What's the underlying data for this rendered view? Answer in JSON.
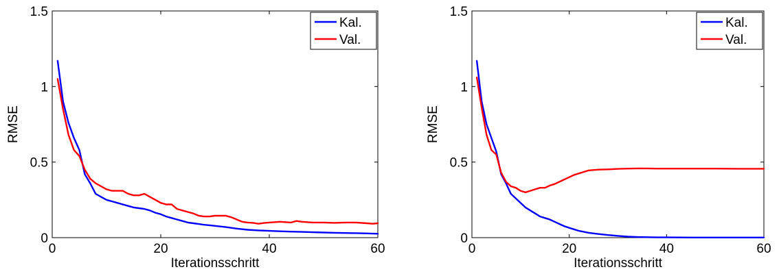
{
  "colors": {
    "kal": "#0000ff",
    "val": "#ff0000",
    "axis": "#000000"
  },
  "chart_data": [
    {
      "type": "line",
      "xlabel": "Iterationsschritt",
      "ylabel": "RMSE",
      "xlim": [
        0,
        60
      ],
      "ylim": [
        0,
        1.5
      ],
      "xticks": [
        0,
        20,
        40,
        60
      ],
      "yticks": [
        0,
        0.5,
        1,
        1.5
      ],
      "ytick_labels": [
        "0",
        "0.5",
        "1",
        "1.5"
      ],
      "grid": false,
      "legend_position": "top-right",
      "series": [
        {
          "name": "Kal.",
          "color": "#0000ff",
          "x": [
            1,
            2,
            3,
            4,
            5,
            6,
            7,
            8,
            9,
            10,
            11,
            12,
            13,
            14,
            15,
            16,
            17,
            18,
            19,
            20,
            21,
            22,
            23,
            24,
            25,
            26,
            27,
            28,
            29,
            30,
            32,
            34,
            36,
            38,
            40,
            42,
            44,
            46,
            48,
            50,
            52,
            54,
            56,
            58,
            60
          ],
          "y": [
            1.17,
            0.9,
            0.76,
            0.66,
            0.58,
            0.42,
            0.36,
            0.29,
            0.27,
            0.25,
            0.24,
            0.23,
            0.22,
            0.21,
            0.2,
            0.195,
            0.19,
            0.18,
            0.165,
            0.155,
            0.14,
            0.13,
            0.12,
            0.11,
            0.1,
            0.095,
            0.09,
            0.085,
            0.082,
            0.078,
            0.07,
            0.06,
            0.052,
            0.048,
            0.045,
            0.042,
            0.04,
            0.038,
            0.036,
            0.034,
            0.032,
            0.031,
            0.03,
            0.028,
            0.026
          ]
        },
        {
          "name": "Val.",
          "color": "#ff0000",
          "x": [
            1,
            2,
            3,
            4,
            5,
            6,
            7,
            8,
            9,
            10,
            11,
            12,
            13,
            14,
            15,
            16,
            17,
            18,
            19,
            20,
            21,
            22,
            23,
            24,
            25,
            26,
            27,
            28,
            29,
            30,
            31,
            32,
            33,
            34,
            35,
            36,
            37,
            38,
            39,
            40,
            42,
            44,
            45,
            46,
            48,
            50,
            52,
            54,
            56,
            58,
            59,
            60
          ],
          "y": [
            1.05,
            0.85,
            0.68,
            0.58,
            0.54,
            0.45,
            0.39,
            0.36,
            0.34,
            0.32,
            0.31,
            0.31,
            0.31,
            0.29,
            0.28,
            0.28,
            0.29,
            0.27,
            0.25,
            0.23,
            0.22,
            0.22,
            0.19,
            0.18,
            0.17,
            0.16,
            0.145,
            0.14,
            0.14,
            0.145,
            0.145,
            0.145,
            0.135,
            0.12,
            0.105,
            0.1,
            0.098,
            0.092,
            0.097,
            0.1,
            0.105,
            0.1,
            0.11,
            0.105,
            0.1,
            0.1,
            0.098,
            0.1,
            0.1,
            0.095,
            0.092,
            0.095
          ]
        }
      ]
    },
    {
      "type": "line",
      "xlabel": "Iterationsschritt",
      "ylabel": "RMSE",
      "xlim": [
        0,
        60
      ],
      "ylim": [
        0,
        1.5
      ],
      "xticks": [
        0,
        20,
        40,
        60
      ],
      "yticks": [
        0,
        0.5,
        1,
        1.5
      ],
      "ytick_labels": [
        "0",
        "0.5",
        "1",
        "1.5"
      ],
      "grid": false,
      "legend_position": "top-right",
      "series": [
        {
          "name": "Kal.",
          "color": "#0000ff",
          "x": [
            1,
            2,
            3,
            4,
            5,
            6,
            7,
            8,
            9,
            10,
            11,
            12,
            13,
            14,
            15,
            16,
            17,
            18,
            19,
            20,
            22,
            24,
            26,
            28,
            30,
            32,
            34,
            36,
            38,
            40,
            45,
            50,
            55,
            60
          ],
          "y": [
            1.17,
            0.9,
            0.75,
            0.66,
            0.57,
            0.42,
            0.36,
            0.29,
            0.26,
            0.23,
            0.2,
            0.18,
            0.16,
            0.14,
            0.13,
            0.12,
            0.105,
            0.09,
            0.075,
            0.065,
            0.045,
            0.032,
            0.024,
            0.017,
            0.012,
            0.007,
            0.004,
            0.003,
            0.002,
            0.002,
            0.001,
            0.001,
            0.001,
            0.001
          ]
        },
        {
          "name": "Val.",
          "color": "#ff0000",
          "x": [
            1,
            2,
            3,
            4,
            5,
            6,
            7,
            8,
            9,
            10,
            11,
            12,
            13,
            14,
            15,
            16,
            17,
            18,
            19,
            20,
            21,
            22,
            23,
            24,
            26,
            28,
            30,
            32,
            34,
            36,
            38,
            40,
            45,
            50,
            55,
            60
          ],
          "y": [
            1.06,
            0.86,
            0.68,
            0.58,
            0.55,
            0.43,
            0.37,
            0.34,
            0.33,
            0.31,
            0.3,
            0.31,
            0.32,
            0.33,
            0.33,
            0.345,
            0.355,
            0.37,
            0.385,
            0.4,
            0.415,
            0.425,
            0.435,
            0.445,
            0.45,
            0.452,
            0.455,
            0.457,
            0.458,
            0.458,
            0.457,
            0.457,
            0.457,
            0.457,
            0.456,
            0.456
          ]
        }
      ]
    }
  ]
}
